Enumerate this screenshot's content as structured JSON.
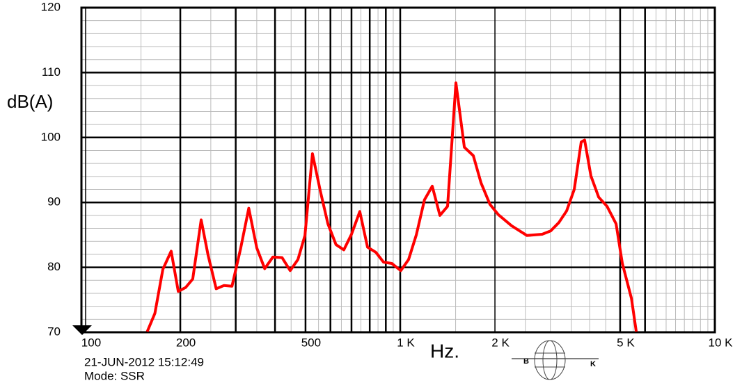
{
  "chart_data": {
    "type": "line",
    "y_label": "dB(A)",
    "x_label": "Hz.",
    "date": "21-JUN-2012 15:12:49",
    "mode": "Mode: SSR",
    "logo": {
      "left": "B",
      "right": "K"
    },
    "xscale": "log",
    "xlim": [
      97,
      10000
    ],
    "xticks": [
      100,
      200,
      500,
      {
        "value": 1000,
        "label": "1 K"
      },
      {
        "value": 2000,
        "label": "2 K"
      },
      {
        "value": 5000,
        "label": "5 K"
      },
      {
        "value": 10000,
        "label": "10 K"
      }
    ],
    "xgrid": [
      200,
      300,
      400,
      500,
      600,
      700,
      800,
      900,
      1000,
      5000,
      6000
    ],
    "ylim": [
      70,
      120
    ],
    "yticks": [
      70,
      80,
      90,
      100,
      110,
      120
    ],
    "grid": true,
    "series": [
      {
        "color": "#ff0000",
        "x": [
          157,
          166,
          176,
          187,
          197,
          208,
          219,
          233,
          245,
          260,
          275,
          292,
          311,
          330,
          350,
          371,
          394,
          421,
          447,
          473,
          498,
          526,
          557,
          589,
          625,
          662,
          700,
          744,
          787,
          837,
          885,
          940,
          1004,
          1063,
          1125,
          1194,
          1264,
          1337,
          1414,
          1503,
          1599,
          1707,
          1807,
          1928,
          2051,
          2259,
          2528,
          2826,
          3006,
          3193,
          3380,
          3574,
          3760,
          3855,
          4037,
          4273,
          4543,
          4853,
          5082,
          5433,
          5627
        ],
        "values": [
          70.1,
          72.9,
          79.7,
          82.5,
          76.3,
          76.9,
          78.2,
          87.3,
          81.9,
          76.7,
          77.2,
          77.1,
          82.9,
          89.1,
          83.0,
          79.8,
          81.6,
          81.5,
          79.5,
          81.2,
          84.9,
          97.5,
          91.8,
          86.7,
          83.5,
          82.7,
          85.1,
          88.6,
          83.1,
          82.3,
          80.8,
          80.6,
          79.5,
          81.2,
          85.0,
          90.4,
          92.5,
          88.0,
          89.4,
          108.4,
          98.5,
          97.2,
          93.0,
          89.7,
          88.1,
          86.4,
          84.9,
          85.1,
          85.6,
          86.9,
          88.7,
          92.0,
          99.3,
          99.6,
          94.1,
          90.8,
          89.4,
          86.7,
          80.6,
          75.2,
          70.1
        ]
      }
    ]
  }
}
